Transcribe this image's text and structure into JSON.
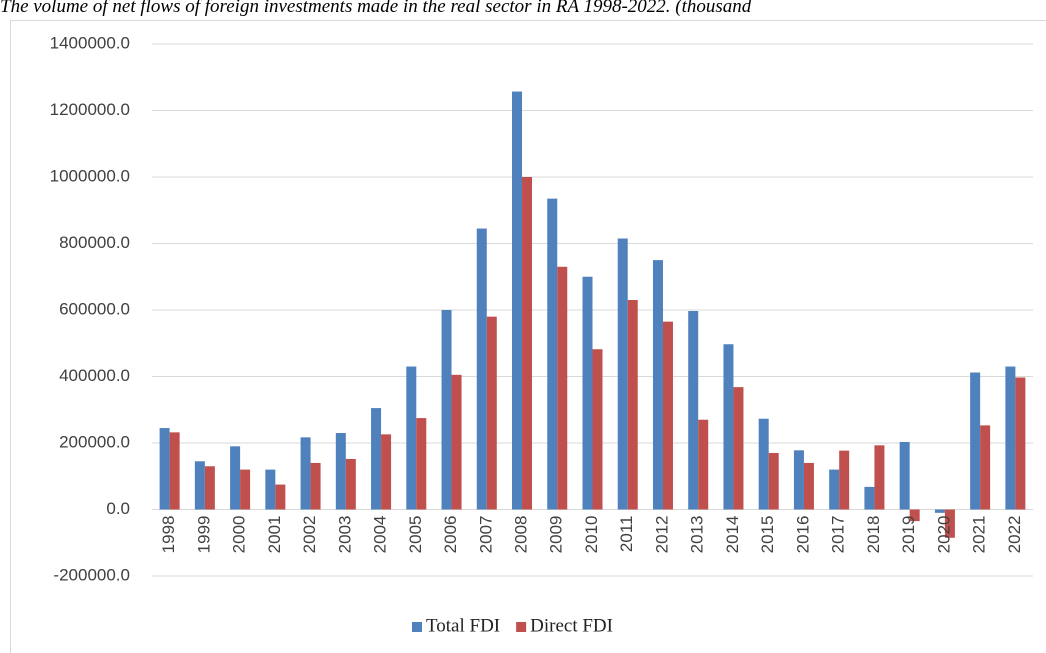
{
  "chart_data": {
    "type": "bar",
    "title": "The volume of net flows of foreign investments made in the real sector in RA 1998-2022. (thousand",
    "categories": [
      "1998",
      "1999",
      "2000",
      "2001",
      "2002",
      "2003",
      "2004",
      "2005",
      "2006",
      "2007",
      "2008",
      "2009",
      "2010",
      "2011",
      "2012",
      "2013",
      "2014",
      "2015",
      "2016",
      "2017",
      "2018",
      "2019",
      "2020",
      "2021",
      "2022"
    ],
    "series": [
      {
        "name": "Total FDI",
        "color": "#4f81bd",
        "values": [
          245000,
          145000,
          190000,
          120000,
          217000,
          230000,
          305000,
          430000,
          600000,
          845000,
          1257000,
          935000,
          700000,
          815000,
          750000,
          597000,
          497000,
          273000,
          178000,
          120000,
          68000,
          203000,
          -10000,
          412000,
          430000
        ]
      },
      {
        "name": "Direct FDI",
        "color": "#c0504d",
        "values": [
          232000,
          130000,
          120000,
          75000,
          140000,
          152000,
          226000,
          275000,
          405000,
          580000,
          1000000,
          730000,
          482000,
          630000,
          565000,
          270000,
          368000,
          170000,
          140000,
          177000,
          193000,
          -35000,
          -85000,
          253000,
          397000
        ]
      }
    ],
    "ylim": [
      -200000,
      1400000
    ],
    "yticks": [
      {
        "value": -200000,
        "label": "-200000.0"
      },
      {
        "value": 0,
        "label": "0.0"
      },
      {
        "value": 200000,
        "label": "200000.0"
      },
      {
        "value": 400000,
        "label": "400000.0"
      },
      {
        "value": 600000,
        "label": "600000.0"
      },
      {
        "value": 800000,
        "label": "800000.0"
      },
      {
        "value": 1000000,
        "label": "1000000.0"
      },
      {
        "value": 1200000,
        "label": "1200000.0"
      },
      {
        "value": 1400000,
        "label": "1400000.0"
      }
    ],
    "grid": true,
    "legend": "bottom"
  }
}
